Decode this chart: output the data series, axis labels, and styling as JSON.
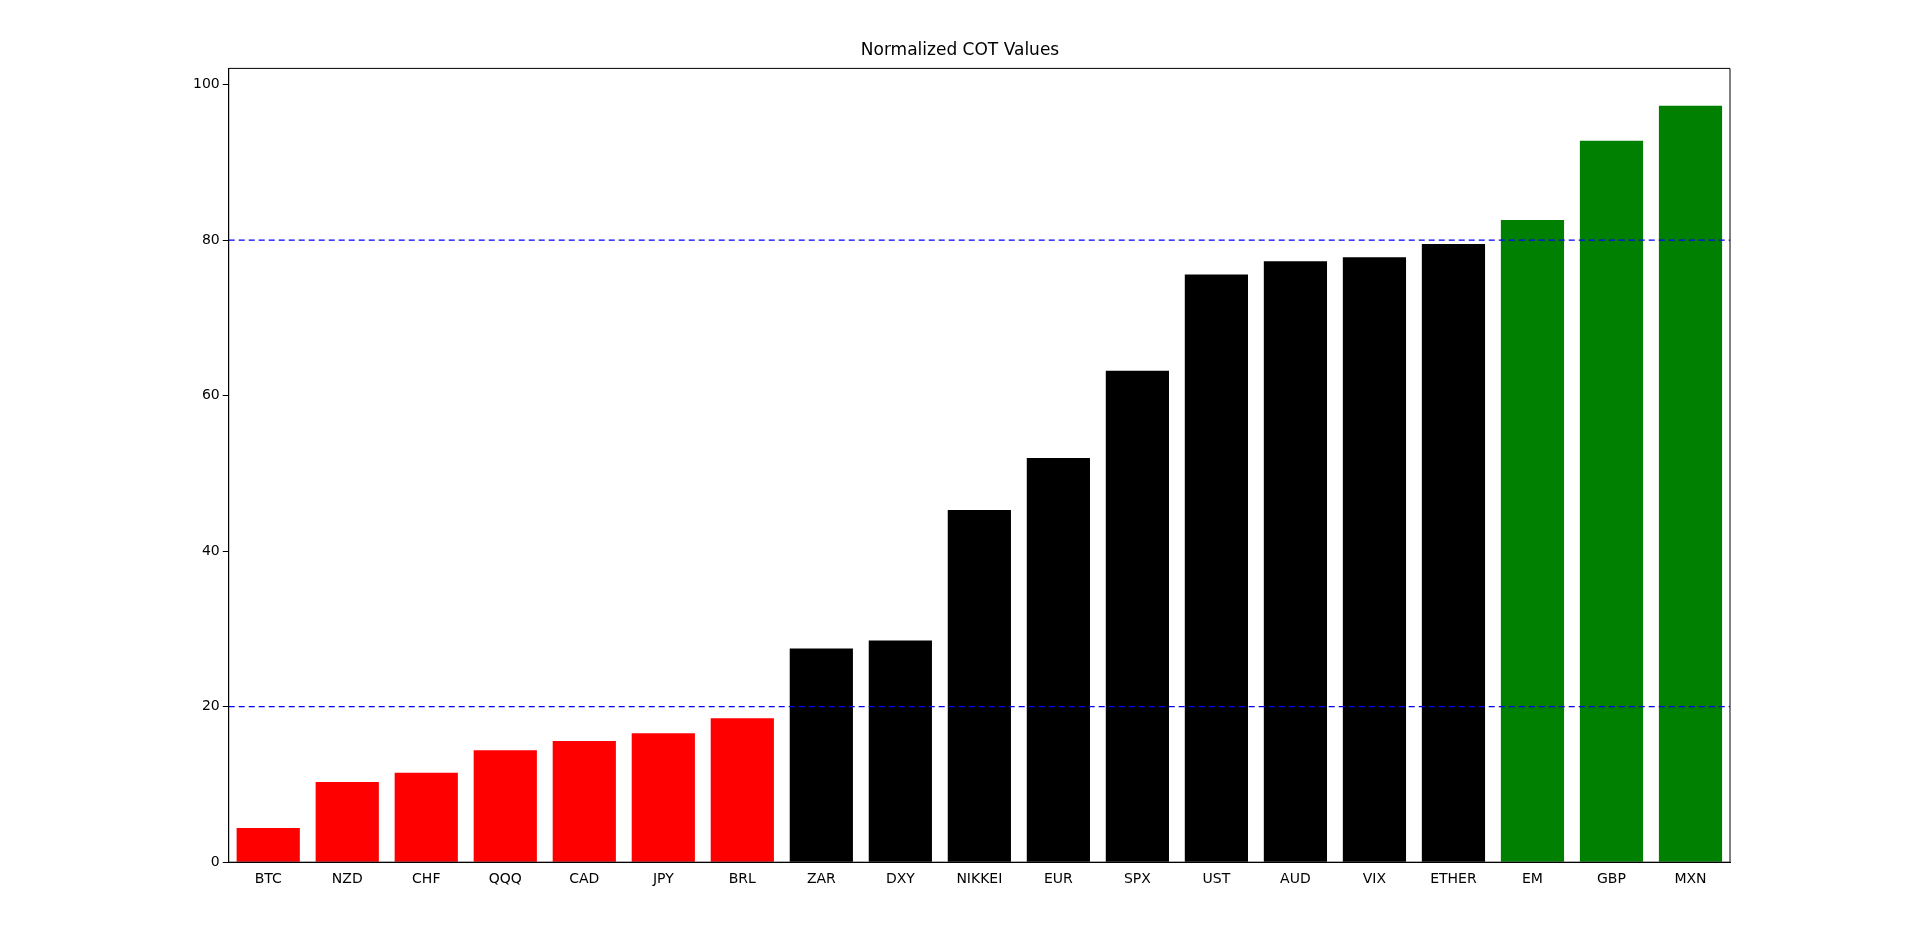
{
  "chart_data": {
    "type": "bar",
    "title": "Normalized COT Values",
    "categories": [
      "BTC",
      "NZD",
      "CHF",
      "QQQ",
      "CAD",
      "JPY",
      "BRL",
      "ZAR",
      "DXY",
      "NIKKEI",
      "EUR",
      "SPX",
      "UST",
      "AUD",
      "VIX",
      "ETHER",
      "EM",
      "GBP",
      "MXN"
    ],
    "values": [
      4.4,
      10.3,
      11.5,
      14.4,
      15.6,
      16.6,
      18.5,
      27.5,
      28.5,
      45.3,
      52.0,
      63.2,
      75.6,
      77.3,
      77.8,
      79.5,
      82.6,
      92.8,
      97.3
    ],
    "colors": [
      "#ff0000",
      "#ff0000",
      "#ff0000",
      "#ff0000",
      "#ff0000",
      "#ff0000",
      "#ff0000",
      "#000000",
      "#000000",
      "#000000",
      "#000000",
      "#000000",
      "#000000",
      "#000000",
      "#000000",
      "#000000",
      "#008000",
      "#008000",
      "#008000"
    ],
    "ylim": [
      0,
      102.1
    ],
    "yticks": [
      0,
      20,
      40,
      60,
      80,
      100
    ],
    "grid": false,
    "legend": false,
    "ref_lines": [
      {
        "axis": "y",
        "value": 20,
        "color": "#0000ff",
        "line_style": "dashed"
      },
      {
        "axis": "y",
        "value": 80,
        "color": "#0000ff",
        "line_style": "dashed"
      }
    ]
  }
}
